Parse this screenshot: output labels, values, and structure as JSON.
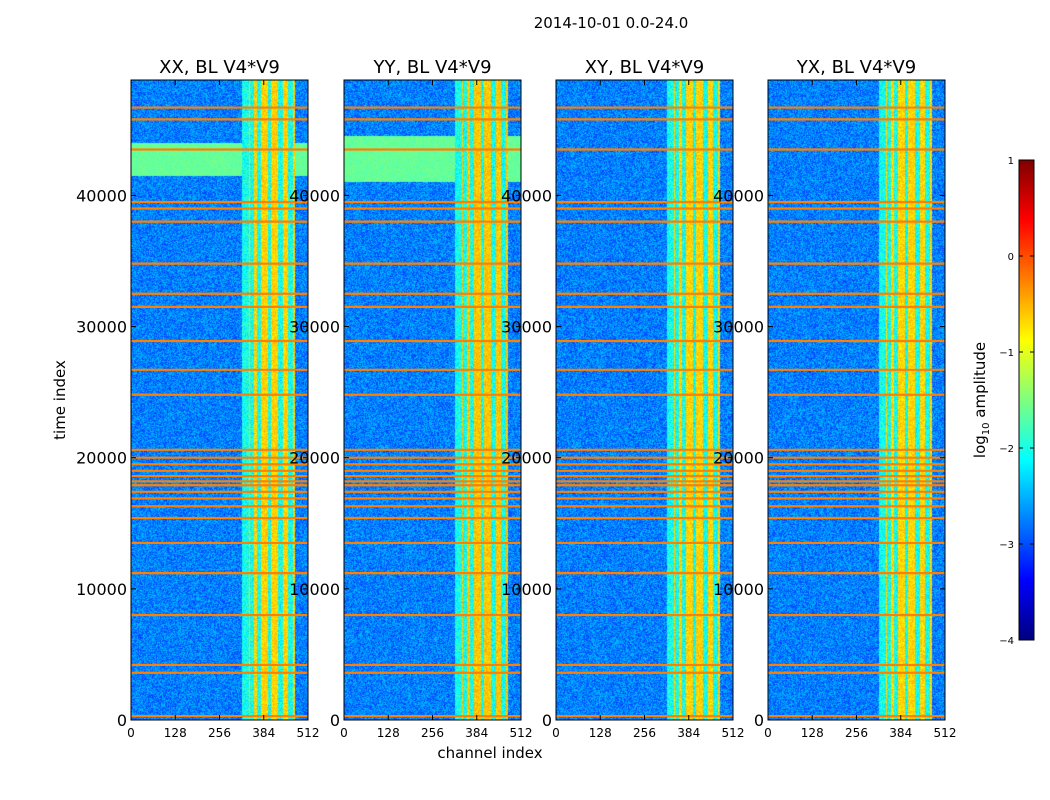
{
  "figure": {
    "suptitle": "2014-10-01 0.0-24.0",
    "xlabel": "channel index",
    "ylabel": "time index"
  },
  "chart_data": {
    "type": "heatmap",
    "panels": [
      {
        "title": "XX, BL V4*V9",
        "band_strength": 1.0,
        "extra_hot_rows": [
          [
            41500,
            44000
          ]
        ]
      },
      {
        "title": "YY, BL V4*V9",
        "band_strength": 1.15,
        "extra_hot_rows": [
          [
            41000,
            44500
          ]
        ]
      },
      {
        "title": "XY, BL V4*V9",
        "band_strength": 1.0,
        "extra_hot_rows": []
      },
      {
        "title": "YX, BL V4*V9",
        "band_strength": 0.95,
        "extra_hot_rows": []
      }
    ],
    "x": {
      "label": "channel index",
      "range": [
        0,
        512
      ],
      "ticks": [
        0,
        128,
        256,
        384,
        512
      ]
    },
    "y": {
      "label": "time index",
      "range": [
        0,
        48800
      ],
      "ticks": [
        0,
        10000,
        20000,
        30000,
        40000
      ]
    },
    "colorbar": {
      "label_prefix": "log",
      "label_subscript": "10",
      "label_suffix": " amplitude",
      "range": [
        -4,
        1
      ],
      "ticks": [
        -4,
        -3,
        -2,
        -1,
        0,
        1
      ],
      "tick_labels": [
        "−4",
        "−3",
        "−2",
        "−1",
        "0",
        "1"
      ],
      "colormap": "jet"
    },
    "flagged_rows": [
      300,
      3600,
      4200,
      8000,
      11200,
      13500,
      15400,
      16300,
      16900,
      17400,
      17900,
      18200,
      18600,
      19000,
      19500,
      20000,
      20600,
      24800,
      26700,
      28900,
      31500,
      32500,
      34800,
      38000,
      39000,
      39500,
      43500,
      45800,
      46700
    ],
    "rfi_channels": [
      [
        320,
        340
      ],
      [
        345,
        355
      ],
      [
        365,
        375
      ],
      [
        395,
        405
      ],
      [
        425,
        440
      ],
      [
        455,
        470
      ]
    ],
    "hot_channel_range": [
      320,
      475
    ]
  }
}
